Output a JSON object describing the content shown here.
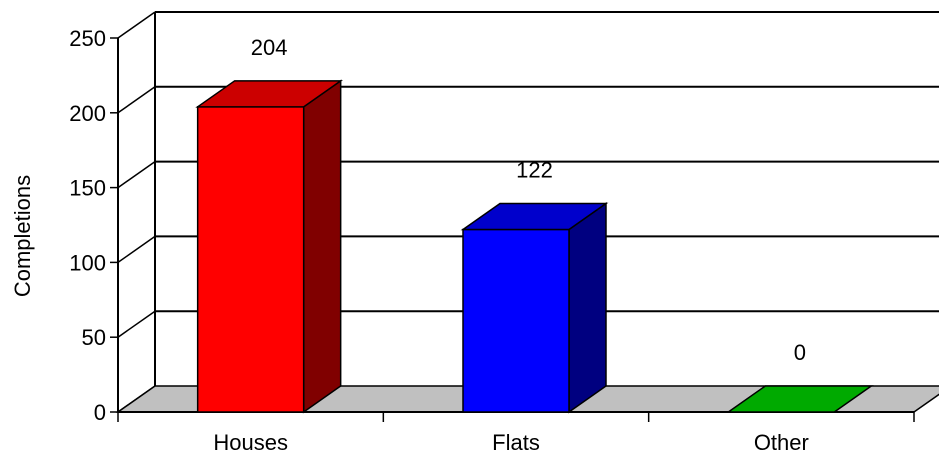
{
  "chart_data": {
    "type": "bar",
    "title": "",
    "xlabel": "",
    "ylabel": "Completions",
    "categories": [
      "Houses",
      "Flats",
      "Other"
    ],
    "values": [
      204,
      122,
      0
    ],
    "data_labels": [
      "204",
      "122",
      "0"
    ],
    "yticks": [
      0,
      50,
      100,
      150,
      200,
      250
    ],
    "ytick_labels": [
      "0",
      "50",
      "100",
      "150",
      "200",
      "250"
    ],
    "ylim": [
      0,
      250
    ],
    "grid": true,
    "style": "3d-bar",
    "colors": {
      "front": [
        "#ff0000",
        "#0000ff",
        "#00cc00"
      ],
      "top": [
        "#cc0000",
        "#0000cc",
        "#00aa00"
      ],
      "side": [
        "#800000",
        "#000080",
        "#006600"
      ],
      "floor": "#c0c0c0"
    }
  }
}
